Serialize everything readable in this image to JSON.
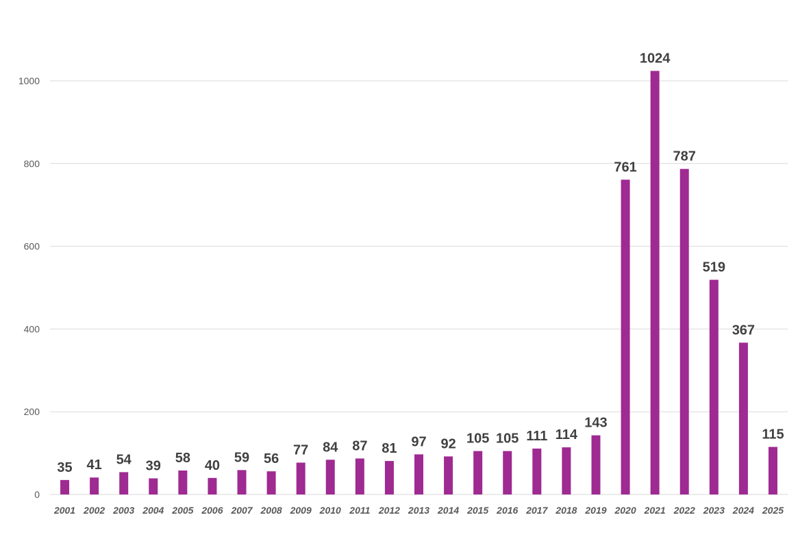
{
  "chart_data": {
    "type": "bar",
    "title": "",
    "xlabel": "",
    "ylabel": "",
    "ylim": [
      0,
      1000
    ],
    "yticks": [
      0,
      200,
      400,
      600,
      800,
      1000
    ],
    "grid": true,
    "legend": "none",
    "bar_color": "#9E2A92",
    "categories": [
      "2001",
      "2002",
      "2003",
      "2004",
      "2005",
      "2006",
      "2007",
      "2008",
      "2009",
      "2010",
      "2011",
      "2012",
      "2013",
      "2014",
      "2015",
      "2016",
      "2017",
      "2018",
      "2019",
      "2020",
      "2021",
      "2022",
      "2023",
      "2024",
      "2025"
    ],
    "values": [
      35,
      41,
      54,
      39,
      58,
      40,
      59,
      56,
      77,
      84,
      87,
      81,
      97,
      92,
      105,
      105,
      111,
      114,
      143,
      761,
      1024,
      787,
      519,
      367,
      115
    ]
  }
}
